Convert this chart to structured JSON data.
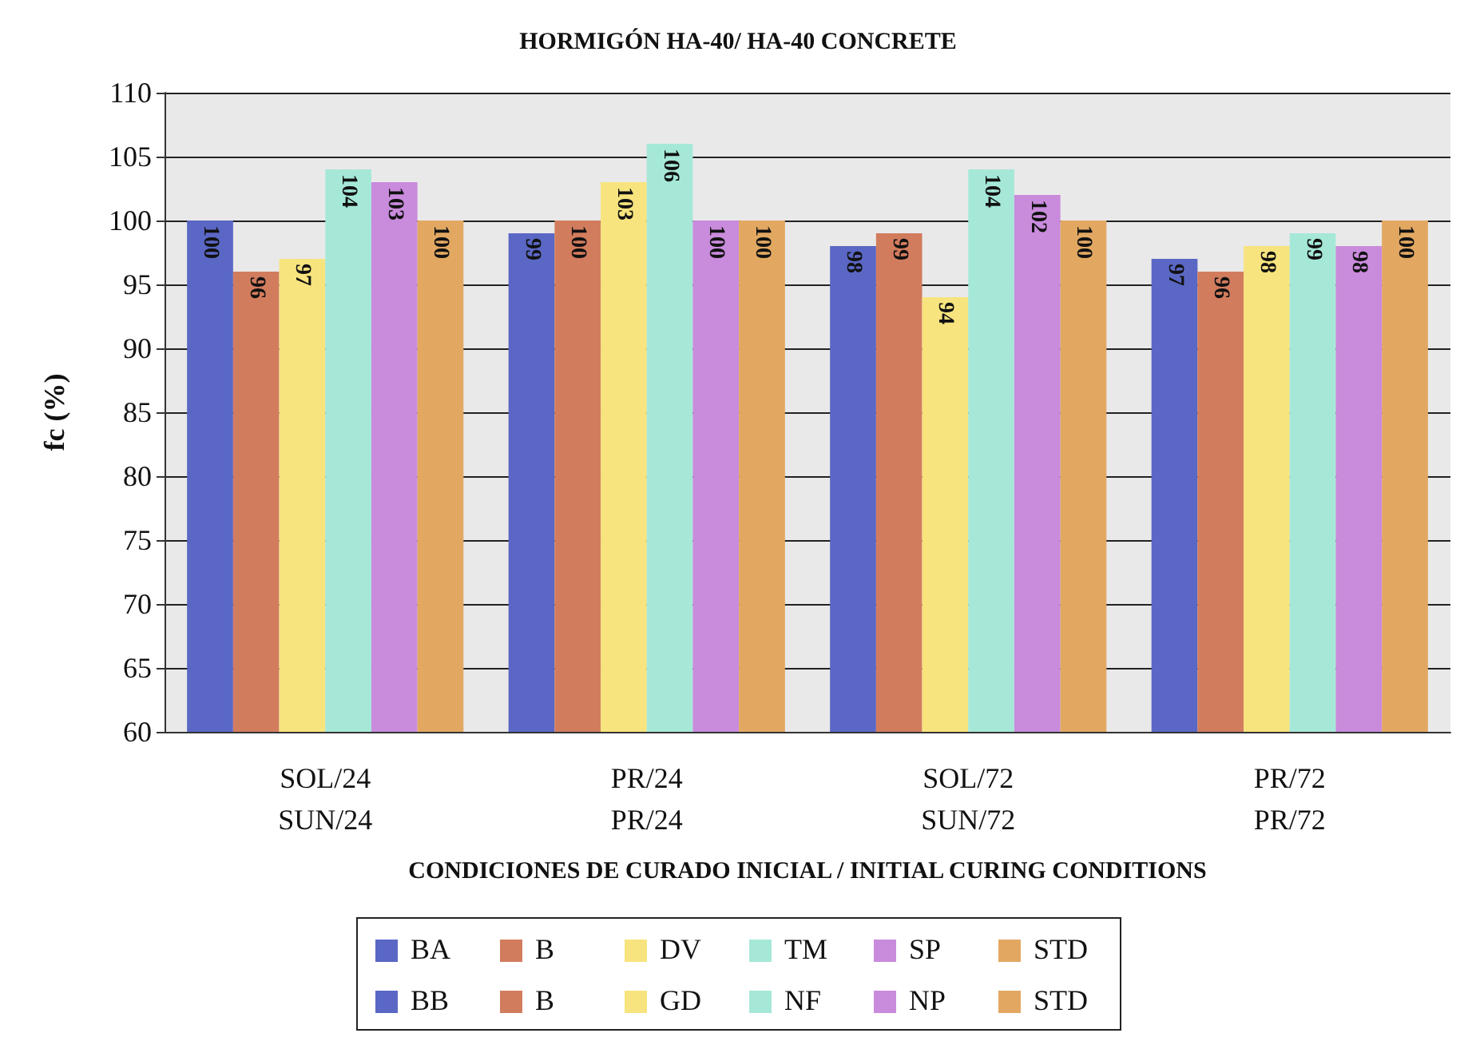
{
  "chart_data": {
    "type": "bar",
    "title": "HORMIGÓN HA-40/ HA-40 CONCRETE",
    "xlabel": "CONDICIONES DE CURADO INICIAL / INITIAL CURING CONDITIONS",
    "ylabel": "fc (%)",
    "categories": [
      "SOL/24\nSUN/24",
      "PR/24\nPR/24",
      "SOL/72\nSUN/72",
      "PR/72\nPR/72"
    ],
    "series": [
      {
        "name": "BA",
        "color": "#5a67c4",
        "values": [
          100,
          99,
          98,
          97
        ]
      },
      {
        "name": "B",
        "color": "#d27c5e",
        "values": [
          96,
          100,
          99,
          96
        ]
      },
      {
        "name": "DV",
        "color": "#f7e47e",
        "values": [
          97,
          103,
          94,
          98
        ]
      },
      {
        "name": "TM",
        "color": "#a6e8d8",
        "values": [
          104,
          106,
          104,
          99
        ]
      },
      {
        "name": "SP",
        "color": "#c98bdc",
        "values": [
          103,
          100,
          102,
          98
        ]
      },
      {
        "name": "STD",
        "color": "#e2a862",
        "values": [
          100,
          100,
          100,
          100
        ]
      },
      {
        "name": "BB",
        "color": "#5a67c4",
        "values": [
          null,
          null,
          null,
          null
        ]
      },
      {
        "name": "B",
        "color": "#d27c5e",
        "values": [
          null,
          null,
          null,
          null
        ]
      },
      {
        "name": "GD",
        "color": "#f7e47e",
        "values": [
          null,
          null,
          null,
          null
        ]
      },
      {
        "name": "NF",
        "color": "#a6e8d8",
        "values": [
          null,
          null,
          null,
          null
        ]
      },
      {
        "name": "NP",
        "color": "#c98bdc",
        "values": [
          null,
          null,
          null,
          null
        ]
      },
      {
        "name": "STD",
        "color": "#e2a862",
        "values": [
          null,
          null,
          null,
          null
        ]
      }
    ],
    "ylim": [
      60,
      110
    ],
    "yticks": [
      60,
      65,
      70,
      75,
      80,
      85,
      90,
      95,
      100,
      105,
      110
    ],
    "grid": "y",
    "data_labels": true,
    "legend": "bottom"
  }
}
